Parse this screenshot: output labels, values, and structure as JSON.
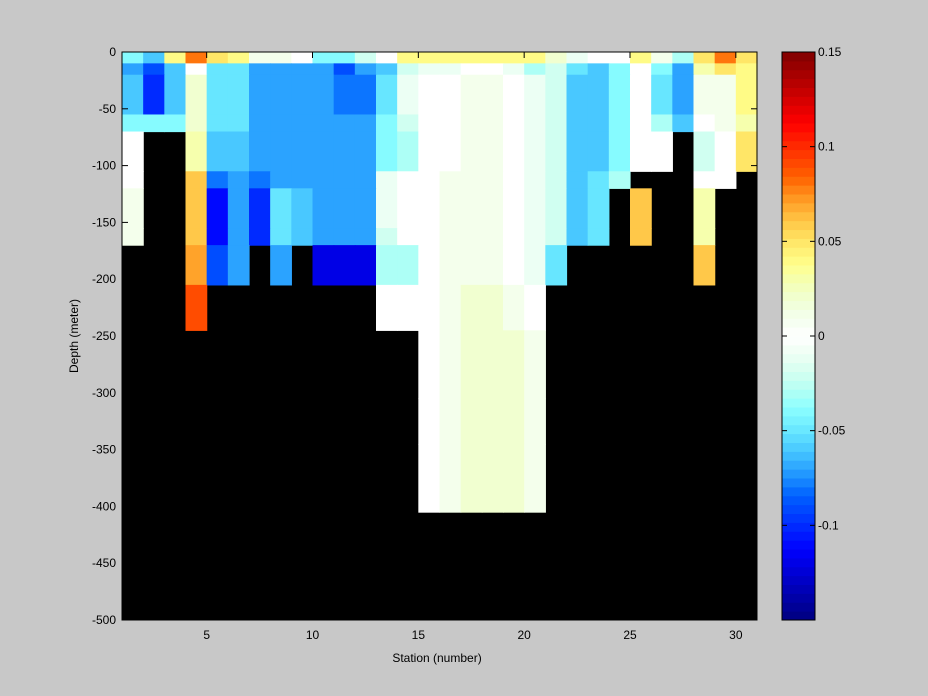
{
  "chart_data": {
    "type": "heatmap",
    "title": "",
    "xlabel": "Station (number)",
    "ylabel": "Depth (meter)",
    "xlim": [
      1,
      31
    ],
    "ylim": [
      -500,
      0
    ],
    "x_ticks": [
      5,
      10,
      15,
      20,
      25,
      30
    ],
    "y_ticks": [
      0,
      -50,
      -100,
      -150,
      -200,
      -250,
      -300,
      -350,
      -400,
      -450,
      -500
    ],
    "colorbar": {
      "range": [
        -0.15,
        0.15
      ],
      "ticks": [
        0.15,
        0.1,
        0.05,
        0,
        -0.05,
        -0.1
      ],
      "tick_labels": [
        "0.15",
        "0.1",
        "0.05",
        "0",
        "-0.05",
        "-0.1"
      ],
      "colormap": "jet-white-center"
    },
    "stations": [
      1,
      2,
      3,
      4,
      5,
      6,
      7,
      8,
      9,
      10,
      11,
      12,
      13,
      14,
      15,
      16,
      17,
      18,
      19,
      20,
      21,
      22,
      23,
      24,
      25,
      26,
      27,
      28,
      29,
      30
    ],
    "depth_levels": [
      -5,
      -15,
      -37.5,
      -62.5,
      -87.5,
      -112.5,
      -137.5,
      -162.5,
      -187.5,
      -225,
      -275,
      -325,
      -375
    ],
    "max_depth": [
      -200,
      -200,
      -100,
      -300,
      -300,
      -250,
      -250,
      -200,
      -250,
      -200,
      -250,
      -250,
      -300,
      -300,
      -400,
      -400,
      -400,
      -400,
      -400,
      -400,
      -300,
      -300,
      -200,
      -150,
      -200,
      -125,
      -100,
      -250,
      -150,
      -125
    ],
    "values": [
      [
        -0.04,
        -0.06,
        0.04,
        0.08,
        0.05,
        0.04,
        0.01,
        0.01,
        0.0,
        -0.04,
        -0.04,
        -0.02,
        0.0,
        0.04,
        0.04,
        0.04,
        0.04,
        0.04,
        0.04,
        0.04,
        0.02,
        -0.01,
        0.0,
        0.0,
        0.04,
        0.01,
        -0.03,
        0.05,
        0.08,
        0.05
      ],
      [
        -0.07,
        -0.09,
        -0.06,
        0.0,
        -0.05,
        -0.05,
        -0.07,
        -0.07,
        -0.07,
        -0.07,
        -0.09,
        -0.07,
        -0.06,
        -0.02,
        -0.01,
        -0.01,
        0.0,
        0.0,
        -0.01,
        -0.03,
        -0.02,
        -0.05,
        -0.06,
        -0.04,
        0.0,
        -0.04,
        -0.07,
        0.03,
        0.05,
        0.04
      ],
      [
        -0.06,
        -0.1,
        -0.06,
        0.02,
        -0.05,
        -0.05,
        -0.07,
        -0.07,
        -0.07,
        -0.07,
        -0.08,
        -0.08,
        -0.05,
        -0.01,
        0.0,
        0.0,
        0.01,
        0.01,
        0.0,
        -0.01,
        -0.02,
        -0.06,
        -0.06,
        -0.04,
        0.0,
        -0.05,
        -0.07,
        0.01,
        0.01,
        0.04
      ],
      [
        -0.04,
        -0.04,
        -0.04,
        0.02,
        -0.05,
        -0.05,
        -0.07,
        -0.07,
        -0.07,
        -0.07,
        -0.07,
        -0.07,
        -0.04,
        -0.02,
        0.0,
        0.0,
        0.01,
        0.01,
        0.0,
        -0.01,
        -0.02,
        -0.06,
        -0.06,
        -0.04,
        0.0,
        -0.03,
        -0.06,
        0.0,
        0.01,
        0.03
      ],
      [
        0.0,
        null,
        null,
        0.03,
        -0.06,
        -0.06,
        -0.07,
        -0.07,
        -0.07,
        -0.07,
        -0.07,
        -0.07,
        -0.04,
        -0.03,
        0.0,
        0.0,
        0.01,
        0.01,
        0.0,
        -0.01,
        -0.02,
        -0.06,
        -0.06,
        -0.04,
        0.0,
        0.0,
        null,
        -0.02,
        0.0,
        0.05
      ],
      [
        0.0,
        null,
        null,
        0.06,
        -0.08,
        -0.07,
        -0.08,
        -0.07,
        -0.07,
        -0.07,
        -0.07,
        -0.07,
        -0.01,
        0.0,
        0.0,
        0.01,
        0.01,
        0.01,
        0.0,
        -0.01,
        -0.02,
        -0.06,
        -0.05,
        -0.03,
        null,
        null,
        null,
        0.0,
        0.0,
        null
      ],
      [
        0.01,
        null,
        null,
        0.06,
        -0.11,
        -0.07,
        -0.1,
        -0.05,
        -0.06,
        -0.07,
        -0.07,
        -0.07,
        -0.01,
        0.0,
        0.0,
        0.01,
        0.01,
        0.01,
        0.0,
        -0.01,
        -0.02,
        -0.06,
        -0.05,
        null,
        0.06,
        null,
        null,
        0.03,
        null,
        null
      ],
      [
        0.01,
        null,
        null,
        0.06,
        -0.11,
        -0.07,
        -0.1,
        -0.05,
        -0.06,
        -0.07,
        -0.07,
        -0.07,
        -0.02,
        0.0,
        0.0,
        0.01,
        0.01,
        0.01,
        0.0,
        -0.01,
        -0.02,
        -0.06,
        -0.05,
        null,
        0.06,
        null,
        null,
        0.03,
        null,
        null
      ],
      [
        null,
        null,
        null,
        0.07,
        -0.09,
        -0.07,
        null,
        -0.07,
        null,
        -0.12,
        -0.12,
        -0.12,
        -0.03,
        -0.03,
        0.0,
        0.01,
        0.01,
        0.01,
        0.0,
        -0.01,
        -0.05,
        null,
        null,
        null,
        null,
        null,
        null,
        0.06,
        null,
        null
      ],
      [
        null,
        null,
        null,
        0.09,
        null,
        null,
        null,
        null,
        null,
        null,
        null,
        null,
        0.0,
        0.0,
        0.0,
        0.01,
        0.02,
        0.02,
        0.01,
        0.0,
        null,
        null,
        null,
        null,
        null,
        null,
        null,
        null,
        null,
        null
      ],
      [
        null,
        null,
        null,
        null,
        null,
        null,
        null,
        null,
        null,
        null,
        null,
        null,
        null,
        null,
        0.0,
        0.01,
        0.02,
        0.02,
        0.02,
        0.01,
        null,
        null,
        null,
        null,
        null,
        null,
        null,
        null,
        null,
        null
      ],
      [
        null,
        null,
        null,
        null,
        null,
        null,
        null,
        null,
        null,
        null,
        null,
        null,
        null,
        null,
        0.0,
        0.01,
        0.02,
        0.02,
        0.02,
        0.01,
        null,
        null,
        null,
        null,
        null,
        null,
        null,
        null,
        null,
        null
      ],
      [
        null,
        null,
        null,
        null,
        null,
        null,
        null,
        null,
        null,
        null,
        null,
        null,
        null,
        null,
        0.0,
        0.01,
        0.02,
        0.02,
        0.02,
        0.01,
        null,
        null,
        null,
        null,
        null,
        null,
        null,
        null,
        null,
        null
      ]
    ]
  }
}
